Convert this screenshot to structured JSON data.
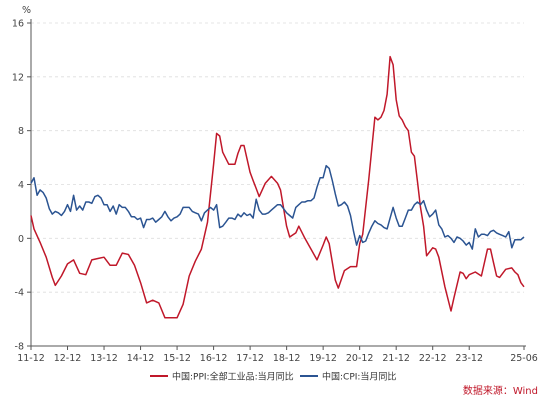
{
  "chart_data": {
    "type": "line",
    "y_unit_label": "%",
    "ylim": [
      -8,
      16
    ],
    "y_ticks": [
      -8,
      -4,
      0,
      4,
      8,
      12,
      16
    ],
    "x_range": [
      2011.917,
      2025.417
    ],
    "x_ticks": [
      {
        "label": "11-12",
        "x": 2011.917
      },
      {
        "label": "12-12",
        "x": 2012.917
      },
      {
        "label": "13-12",
        "x": 2013.917
      },
      {
        "label": "14-12",
        "x": 2014.917
      },
      {
        "label": "15-12",
        "x": 2015.917
      },
      {
        "label": "16-12",
        "x": 2016.917
      },
      {
        "label": "17-12",
        "x": 2017.917
      },
      {
        "label": "18-12",
        "x": 2018.917
      },
      {
        "label": "19-12",
        "x": 2019.917
      },
      {
        "label": "20-12",
        "x": 2020.917
      },
      {
        "label": "21-12",
        "x": 2021.917
      },
      {
        "label": "22-12",
        "x": 2022.917
      },
      {
        "label": "23-12",
        "x": 2023.917
      },
      {
        "label": "25-06",
        "x": 2025.417
      }
    ],
    "grid": "horizontal-dashed",
    "legend_position": "bottom",
    "series": [
      {
        "name": "中国:PPI:全部工业品:当月同比",
        "color": "#c0182a",
        "points": [
          [
            2011.917,
            1.7
          ],
          [
            2012.0,
            0.7
          ],
          [
            2012.167,
            -0.3
          ],
          [
            2012.333,
            -1.4
          ],
          [
            2012.5,
            -2.9
          ],
          [
            2012.583,
            -3.5
          ],
          [
            2012.75,
            -2.8
          ],
          [
            2012.917,
            -1.9
          ],
          [
            2013.083,
            -1.6
          ],
          [
            2013.25,
            -2.6
          ],
          [
            2013.417,
            -2.7
          ],
          [
            2013.583,
            -1.6
          ],
          [
            2013.75,
            -1.5
          ],
          [
            2013.917,
            -1.4
          ],
          [
            2014.083,
            -2.0
          ],
          [
            2014.25,
            -2.0
          ],
          [
            2014.417,
            -1.1
          ],
          [
            2014.583,
            -1.2
          ],
          [
            2014.75,
            -2.0
          ],
          [
            2014.917,
            -3.3
          ],
          [
            2015.083,
            -4.8
          ],
          [
            2015.25,
            -4.6
          ],
          [
            2015.417,
            -4.8
          ],
          [
            2015.583,
            -5.9
          ],
          [
            2015.75,
            -5.9
          ],
          [
            2015.917,
            -5.9
          ],
          [
            2016.083,
            -4.9
          ],
          [
            2016.25,
            -2.8
          ],
          [
            2016.417,
            -1.7
          ],
          [
            2016.583,
            -0.8
          ],
          [
            2016.75,
            1.2
          ],
          [
            2016.917,
            5.5
          ],
          [
            2017.0,
            7.8
          ],
          [
            2017.083,
            7.6
          ],
          [
            2017.167,
            6.4
          ],
          [
            2017.333,
            5.5
          ],
          [
            2017.5,
            5.5
          ],
          [
            2017.583,
            6.3
          ],
          [
            2017.667,
            6.9
          ],
          [
            2017.75,
            6.9
          ],
          [
            2017.917,
            4.9
          ],
          [
            2018.0,
            4.3
          ],
          [
            2018.083,
            3.7
          ],
          [
            2018.167,
            3.1
          ],
          [
            2018.333,
            4.1
          ],
          [
            2018.5,
            4.6
          ],
          [
            2018.667,
            4.1
          ],
          [
            2018.75,
            3.6
          ],
          [
            2018.917,
            0.9
          ],
          [
            2019.0,
            0.1
          ],
          [
            2019.167,
            0.4
          ],
          [
            2019.25,
            0.9
          ],
          [
            2019.417,
            0.0
          ],
          [
            2019.583,
            -0.8
          ],
          [
            2019.75,
            -1.6
          ],
          [
            2019.917,
            -0.5
          ],
          [
            2020.0,
            0.1
          ],
          [
            2020.083,
            -0.4
          ],
          [
            2020.25,
            -3.1
          ],
          [
            2020.333,
            -3.7
          ],
          [
            2020.5,
            -2.4
          ],
          [
            2020.667,
            -2.1
          ],
          [
            2020.833,
            -2.1
          ],
          [
            2020.917,
            -0.4
          ],
          [
            2021.0,
            0.3
          ],
          [
            2021.167,
            4.4
          ],
          [
            2021.333,
            9.0
          ],
          [
            2021.417,
            8.8
          ],
          [
            2021.5,
            9.0
          ],
          [
            2021.583,
            9.5
          ],
          [
            2021.667,
            10.7
          ],
          [
            2021.75,
            13.5
          ],
          [
            2021.833,
            12.9
          ],
          [
            2021.917,
            10.3
          ],
          [
            2022.0,
            9.1
          ],
          [
            2022.083,
            8.8
          ],
          [
            2022.167,
            8.3
          ],
          [
            2022.25,
            8.0
          ],
          [
            2022.333,
            6.4
          ],
          [
            2022.417,
            6.1
          ],
          [
            2022.5,
            4.2
          ],
          [
            2022.583,
            2.3
          ],
          [
            2022.667,
            0.9
          ],
          [
            2022.75,
            -1.3
          ],
          [
            2022.917,
            -0.7
          ],
          [
            2023.0,
            -0.8
          ],
          [
            2023.083,
            -1.4
          ],
          [
            2023.25,
            -3.6
          ],
          [
            2023.417,
            -5.4
          ],
          [
            2023.5,
            -4.4
          ],
          [
            2023.667,
            -2.5
          ],
          [
            2023.75,
            -2.6
          ],
          [
            2023.833,
            -3.0
          ],
          [
            2023.917,
            -2.7
          ],
          [
            2024.083,
            -2.5
          ],
          [
            2024.25,
            -2.8
          ],
          [
            2024.417,
            -0.8
          ],
          [
            2024.5,
            -0.8
          ],
          [
            2024.583,
            -1.8
          ],
          [
            2024.667,
            -2.8
          ],
          [
            2024.75,
            -2.9
          ],
          [
            2024.917,
            -2.3
          ],
          [
            2025.083,
            -2.2
          ],
          [
            2025.167,
            -2.5
          ],
          [
            2025.25,
            -2.7
          ],
          [
            2025.333,
            -3.3
          ],
          [
            2025.417,
            -3.6
          ]
        ]
      },
      {
        "name": "中国:CPI:当月同比",
        "color": "#2b5492",
        "points": [
          [
            2011.917,
            4.1
          ],
          [
            2012.0,
            4.5
          ],
          [
            2012.083,
            3.2
          ],
          [
            2012.167,
            3.6
          ],
          [
            2012.25,
            3.4
          ],
          [
            2012.333,
            3.0
          ],
          [
            2012.417,
            2.2
          ],
          [
            2012.5,
            1.8
          ],
          [
            2012.583,
            2.0
          ],
          [
            2012.667,
            1.9
          ],
          [
            2012.75,
            1.7
          ],
          [
            2012.833,
            2.0
          ],
          [
            2012.917,
            2.5
          ],
          [
            2013.0,
            2.0
          ],
          [
            2013.083,
            3.2
          ],
          [
            2013.167,
            2.1
          ],
          [
            2013.25,
            2.4
          ],
          [
            2013.333,
            2.1
          ],
          [
            2013.417,
            2.7
          ],
          [
            2013.5,
            2.7
          ],
          [
            2013.583,
            2.6
          ],
          [
            2013.667,
            3.1
          ],
          [
            2013.75,
            3.2
          ],
          [
            2013.833,
            3.0
          ],
          [
            2013.917,
            2.5
          ],
          [
            2014.0,
            2.5
          ],
          [
            2014.083,
            2.0
          ],
          [
            2014.167,
            2.4
          ],
          [
            2014.25,
            1.8
          ],
          [
            2014.333,
            2.5
          ],
          [
            2014.417,
            2.3
          ],
          [
            2014.5,
            2.3
          ],
          [
            2014.583,
            2.0
          ],
          [
            2014.667,
            1.6
          ],
          [
            2014.75,
            1.6
          ],
          [
            2014.833,
            1.4
          ],
          [
            2014.917,
            1.5
          ],
          [
            2015.0,
            0.8
          ],
          [
            2015.083,
            1.4
          ],
          [
            2015.167,
            1.4
          ],
          [
            2015.25,
            1.5
          ],
          [
            2015.333,
            1.2
          ],
          [
            2015.417,
            1.4
          ],
          [
            2015.5,
            1.6
          ],
          [
            2015.583,
            2.0
          ],
          [
            2015.667,
            1.6
          ],
          [
            2015.75,
            1.3
          ],
          [
            2015.833,
            1.5
          ],
          [
            2015.917,
            1.6
          ],
          [
            2016.0,
            1.8
          ],
          [
            2016.083,
            2.3
          ],
          [
            2016.167,
            2.3
          ],
          [
            2016.25,
            2.3
          ],
          [
            2016.333,
            2.0
          ],
          [
            2016.417,
            1.9
          ],
          [
            2016.5,
            1.8
          ],
          [
            2016.583,
            1.3
          ],
          [
            2016.667,
            1.9
          ],
          [
            2016.75,
            2.1
          ],
          [
            2016.833,
            2.3
          ],
          [
            2016.917,
            2.1
          ],
          [
            2017.0,
            2.5
          ],
          [
            2017.083,
            0.8
          ],
          [
            2017.167,
            0.9
          ],
          [
            2017.25,
            1.2
          ],
          [
            2017.333,
            1.5
          ],
          [
            2017.417,
            1.5
          ],
          [
            2017.5,
            1.4
          ],
          [
            2017.583,
            1.8
          ],
          [
            2017.667,
            1.6
          ],
          [
            2017.75,
            1.9
          ],
          [
            2017.833,
            1.7
          ],
          [
            2017.917,
            1.8
          ],
          [
            2018.0,
            1.5
          ],
          [
            2018.083,
            2.9
          ],
          [
            2018.167,
            2.1
          ],
          [
            2018.25,
            1.8
          ],
          [
            2018.333,
            1.8
          ],
          [
            2018.417,
            1.9
          ],
          [
            2018.5,
            2.1
          ],
          [
            2018.583,
            2.3
          ],
          [
            2018.667,
            2.5
          ],
          [
            2018.75,
            2.5
          ],
          [
            2018.833,
            2.2
          ],
          [
            2018.917,
            1.9
          ],
          [
            2019.0,
            1.7
          ],
          [
            2019.083,
            1.5
          ],
          [
            2019.167,
            2.3
          ],
          [
            2019.25,
            2.5
          ],
          [
            2019.333,
            2.7
          ],
          [
            2019.417,
            2.7
          ],
          [
            2019.5,
            2.8
          ],
          [
            2019.583,
            2.8
          ],
          [
            2019.667,
            3.0
          ],
          [
            2019.75,
            3.8
          ],
          [
            2019.833,
            4.5
          ],
          [
            2019.917,
            4.5
          ],
          [
            2020.0,
            5.4
          ],
          [
            2020.083,
            5.2
          ],
          [
            2020.167,
            4.3
          ],
          [
            2020.25,
            3.3
          ],
          [
            2020.333,
            2.4
          ],
          [
            2020.417,
            2.5
          ],
          [
            2020.5,
            2.7
          ],
          [
            2020.583,
            2.4
          ],
          [
            2020.667,
            1.7
          ],
          [
            2020.75,
            0.5
          ],
          [
            2020.833,
            -0.5
          ],
          [
            2020.917,
            0.2
          ],
          [
            2021.0,
            -0.3
          ],
          [
            2021.083,
            -0.2
          ],
          [
            2021.167,
            0.4
          ],
          [
            2021.25,
            0.9
          ],
          [
            2021.333,
            1.3
          ],
          [
            2021.417,
            1.1
          ],
          [
            2021.5,
            1.0
          ],
          [
            2021.583,
            0.8
          ],
          [
            2021.667,
            0.7
          ],
          [
            2021.75,
            1.5
          ],
          [
            2021.833,
            2.3
          ],
          [
            2021.917,
            1.5
          ],
          [
            2022.0,
            0.9
          ],
          [
            2022.083,
            0.9
          ],
          [
            2022.167,
            1.5
          ],
          [
            2022.25,
            2.1
          ],
          [
            2022.333,
            2.1
          ],
          [
            2022.417,
            2.5
          ],
          [
            2022.5,
            2.7
          ],
          [
            2022.583,
            2.5
          ],
          [
            2022.667,
            2.8
          ],
          [
            2022.75,
            2.1
          ],
          [
            2022.833,
            1.6
          ],
          [
            2022.917,
            1.8
          ],
          [
            2023.0,
            2.1
          ],
          [
            2023.083,
            1.0
          ],
          [
            2023.167,
            0.7
          ],
          [
            2023.25,
            0.1
          ],
          [
            2023.333,
            0.2
          ],
          [
            2023.417,
            0.0
          ],
          [
            2023.5,
            -0.3
          ],
          [
            2023.583,
            0.1
          ],
          [
            2023.667,
            0.0
          ],
          [
            2023.75,
            -0.2
          ],
          [
            2023.833,
            -0.5
          ],
          [
            2023.917,
            -0.3
          ],
          [
            2024.0,
            -0.8
          ],
          [
            2024.083,
            0.7
          ],
          [
            2024.167,
            0.1
          ],
          [
            2024.25,
            0.3
          ],
          [
            2024.333,
            0.3
          ],
          [
            2024.417,
            0.2
          ],
          [
            2024.5,
            0.5
          ],
          [
            2024.583,
            0.6
          ],
          [
            2024.667,
            0.4
          ],
          [
            2024.75,
            0.3
          ],
          [
            2024.833,
            0.2
          ],
          [
            2024.917,
            0.1
          ],
          [
            2025.0,
            0.5
          ],
          [
            2025.083,
            -0.7
          ],
          [
            2025.167,
            -0.1
          ],
          [
            2025.25,
            -0.1
          ],
          [
            2025.333,
            -0.1
          ],
          [
            2025.417,
            0.1
          ]
        ]
      }
    ]
  },
  "source_note": "数据来源：Wind"
}
